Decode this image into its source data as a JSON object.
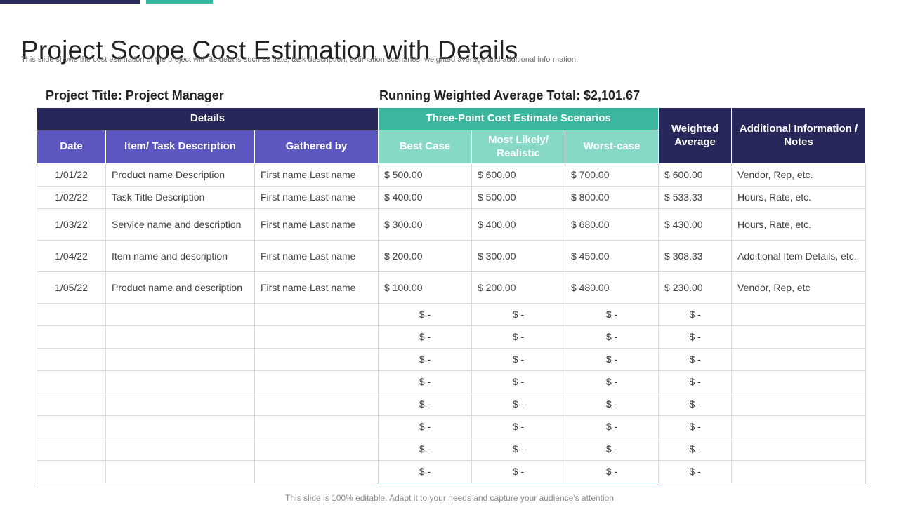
{
  "slide": {
    "title": "Project Scope Cost Estimation with Details",
    "subtitle": "This slide shows the cost estimation of the project with its details such as date, task description, estimation scenarios, weighted average and additional information.",
    "project_title": "Project Title: Project Manager",
    "running_total": "Running Weighted Average Total: $2,101.67",
    "footer": "This slide is 100% editable. Adapt it to your needs and capture your audience's attention",
    "colors": {
      "dark_navy": "#27275a",
      "purple": "#5b56c0",
      "teal": "#3cb79f",
      "mint": "#86d9c7"
    }
  },
  "table": {
    "group_headers": {
      "details": "Details",
      "three_point": "Three-Point Cost Estimate Scenarios",
      "weighted": "Weighted Average",
      "additional": "Additional Information / Notes"
    },
    "columns": {
      "date": "Date",
      "task": "Item/ Task Description",
      "gathered": "Gathered by",
      "best": "Best Case",
      "likely": "Most Likely/ Realistic",
      "worst": "Worst-case"
    },
    "rows": [
      {
        "date": "1/01/22",
        "task": "Product name Description",
        "gathered": "First name Last name",
        "best": "$ 500.00",
        "likely": "$ 600.00",
        "worst": "$ 700.00",
        "weighted": "$ 600.00",
        "notes": "Vendor, Rep, etc."
      },
      {
        "date": "1/02/22",
        "task": "Task Title Description",
        "gathered": "First name Last name",
        "best": "$ 400.00",
        "likely": "$ 500.00",
        "worst": "$ 800.00",
        "weighted": "$ 533.33",
        "notes": "Hours, Rate, etc."
      },
      {
        "date": "1/03/22",
        "task": "Service name and description",
        "gathered": "First name Last name",
        "best": "$ 300.00",
        "likely": "$ 400.00",
        "worst": "$ 680.00",
        "weighted": "$ 430.00",
        "notes": "Hours, Rate, etc."
      },
      {
        "date": "1/04/22",
        "task": "Item name and description",
        "gathered": "First name Last name",
        "best": "$ 200.00",
        "likely": "$ 300.00",
        "worst": "$ 450.00",
        "weighted": "$ 308.33",
        "notes": "Additional Item Details, etc."
      },
      {
        "date": "1/05/22",
        "task": "Product name and description",
        "gathered": "First name Last name",
        "best": "$ 100.00",
        "likely": "$ 200.00",
        "worst": "$ 480.00",
        "weighted": "$ 230.00",
        "notes": "Vendor, Rep, etc"
      }
    ],
    "empty_value": "$ -",
    "empty_row_count": 8
  }
}
